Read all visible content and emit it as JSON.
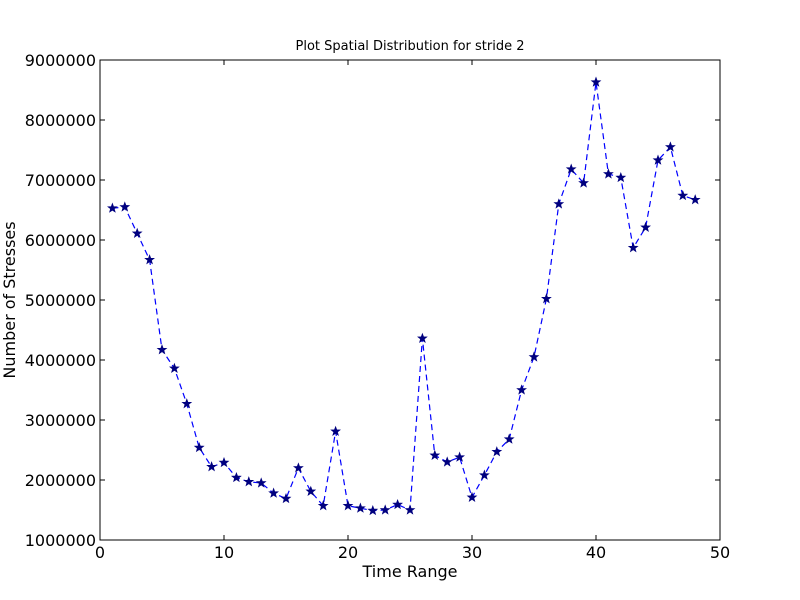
{
  "chart_data": {
    "type": "line",
    "title": "Plot Spatial Distribution for stride 2",
    "xlabel": "Time Range",
    "ylabel": "Number of Stresses",
    "xlim": [
      0,
      50
    ],
    "ylim": [
      1000000,
      9000000
    ],
    "x_ticks": [
      0,
      10,
      20,
      30,
      40,
      50
    ],
    "y_ticks": [
      1000000,
      2000000,
      3000000,
      4000000,
      5000000,
      6000000,
      7000000,
      8000000,
      9000000
    ],
    "x_tick_labels": [
      "0",
      "10",
      "20",
      "30",
      "40",
      "50"
    ],
    "y_tick_labels": [
      "1000000",
      "2000000",
      "3000000",
      "4000000",
      "5000000",
      "6000000",
      "7000000",
      "8000000",
      "9000000"
    ],
    "grid": false,
    "series": [
      {
        "color": "#0000ff",
        "line_style": "dashed",
        "marker": "star",
        "x": [
          1,
          2,
          3,
          4,
          5,
          6,
          7,
          8,
          9,
          10,
          11,
          12,
          13,
          14,
          15,
          16,
          17,
          18,
          19,
          20,
          21,
          22,
          23,
          24,
          25,
          26,
          27,
          28,
          29,
          30,
          31,
          32,
          33,
          34,
          35,
          36,
          37,
          38,
          39,
          40,
          41,
          42,
          43,
          44,
          45,
          46,
          47,
          48
        ],
        "y": [
          6530000,
          6550000,
          6110000,
          5670000,
          4170000,
          3860000,
          3270000,
          2540000,
          2220000,
          2290000,
          2040000,
          1970000,
          1950000,
          1780000,
          1690000,
          2200000,
          1810000,
          1570000,
          2810000,
          1570000,
          1530000,
          1490000,
          1500000,
          1590000,
          1500000,
          4360000,
          2410000,
          2300000,
          2380000,
          1710000,
          2080000,
          2470000,
          2680000,
          3500000,
          4050000,
          5020000,
          6600000,
          7180000,
          6950000,
          8630000,
          7100000,
          7040000,
          5870000,
          6210000,
          7330000,
          7550000,
          6740000,
          6670000
        ]
      }
    ]
  }
}
